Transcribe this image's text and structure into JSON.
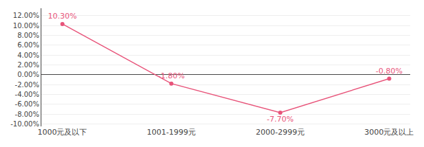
{
  "chart_data": {
    "type": "line",
    "categories": [
      "1000元及以下",
      "1001-1999元",
      "2000-2999元",
      "3000元及以上"
    ],
    "values": [
      0.103,
      -0.018,
      -0.077,
      -0.008
    ],
    "value_labels": [
      "10.30%",
      "-1.80%",
      "-7.70%",
      "-0.80%"
    ],
    "data_labels": true,
    "color": "#E8547A",
    "marker": "circle",
    "ylim": [
      -0.105,
      0.135
    ],
    "yticks": [
      {
        "value": -0.1,
        "label": "-10.00%"
      },
      {
        "value": -0.08,
        "label": "-8.00%"
      },
      {
        "value": -0.06,
        "label": "-6.00%"
      },
      {
        "value": -0.04,
        "label": "-4.00%"
      },
      {
        "value": -0.02,
        "label": "-2.00%"
      },
      {
        "value": 0.0,
        "label": "0.00%"
      },
      {
        "value": 0.02,
        "label": "2.00%"
      },
      {
        "value": 0.04,
        "label": "4.00%"
      },
      {
        "value": 0.06,
        "label": "6.00%"
      },
      {
        "value": 0.08,
        "label": "8.00%"
      },
      {
        "value": 0.1,
        "label": "10.00%"
      },
      {
        "value": 0.12,
        "label": "12.00%"
      }
    ],
    "grid": true
  }
}
